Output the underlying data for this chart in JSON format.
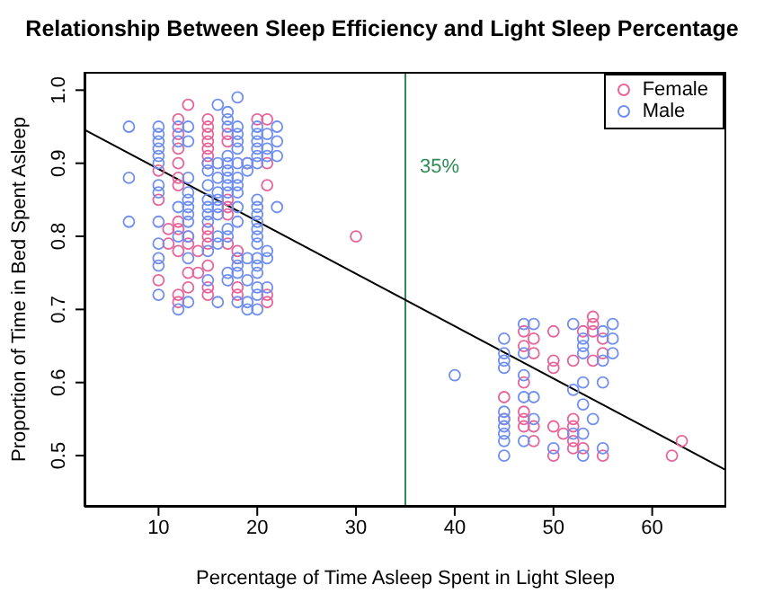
{
  "chart_data": {
    "type": "scatter",
    "title": "Relationship Between Sleep Efficiency and Light Sleep Percentage",
    "xlabel": "Percentage of Time Asleep Spent in Light Sleep",
    "ylabel": "Proportion of Time in Bed Spent Asleep",
    "xlim": [
      2.5,
      67.5
    ],
    "ylim": [
      0.43,
      1.025
    ],
    "xticks": [
      10,
      20,
      30,
      40,
      50,
      60
    ],
    "yticks": [
      0.5,
      0.6,
      0.7,
      0.8,
      0.9,
      {
        "value": 1,
        "label": "1.0"
      }
    ],
    "legend": "top right",
    "marker": "circle",
    "series": [
      {
        "name": "Female",
        "color": "#e7649a",
        "x": [
          10,
          10,
          10,
          11,
          11,
          12,
          12,
          12,
          12,
          12,
          12,
          12,
          12,
          12,
          12,
          12,
          13,
          13,
          13,
          13,
          13,
          14,
          14,
          15,
          15,
          15,
          15,
          15,
          15,
          15,
          15,
          15,
          15,
          15,
          15,
          15,
          17,
          17,
          17,
          17,
          17,
          17,
          18,
          18,
          18,
          18,
          19,
          20,
          21,
          21,
          21,
          21,
          21,
          30,
          45,
          45,
          47,
          47,
          47,
          47,
          47,
          47,
          48,
          48,
          48,
          48,
          50,
          50,
          50,
          50,
          50,
          51,
          52,
          52,
          52,
          52,
          52,
          53,
          53,
          54,
          54,
          54,
          54,
          55,
          55,
          55,
          62,
          63
        ],
        "values": [
          0.89,
          0.85,
          0.74,
          0.81,
          0.79,
          0.96,
          0.94,
          0.92,
          0.9,
          0.88,
          0.87,
          0.82,
          0.81,
          0.78,
          0.72,
          0.71,
          0.98,
          0.8,
          0.79,
          0.75,
          0.73,
          0.78,
          0.75,
          0.96,
          0.95,
          0.94,
          0.93,
          0.92,
          0.91,
          0.9,
          0.81,
          0.8,
          0.79,
          0.76,
          0.73,
          0.72,
          0.94,
          0.93,
          0.85,
          0.84,
          0.83,
          0.79,
          0.78,
          0.77,
          0.73,
          0.72,
          0.9,
          0.96,
          0.96,
          0.9,
          0.87,
          0.72,
          0.71,
          0.8,
          0.58,
          0.55,
          0.67,
          0.65,
          0.6,
          0.56,
          0.55,
          0.54,
          0.66,
          0.64,
          0.54,
          0.52,
          0.67,
          0.63,
          0.62,
          0.54,
          0.5,
          0.53,
          0.63,
          0.55,
          0.54,
          0.52,
          0.51,
          0.67,
          0.51,
          0.69,
          0.68,
          0.67,
          0.63,
          0.66,
          0.64,
          0.5,
          0.5,
          0.52
        ]
      },
      {
        "name": "Male",
        "color": "#6f8ff0",
        "x": [
          7,
          7,
          7,
          10,
          10,
          10,
          10,
          10,
          10,
          10,
          10,
          10,
          10,
          10,
          10,
          10,
          12,
          12,
          12,
          12,
          12,
          13,
          13,
          13,
          13,
          13,
          13,
          13,
          13,
          13,
          13,
          13,
          15,
          15,
          15,
          15,
          15,
          15,
          15,
          15,
          15,
          16,
          16,
          16,
          16,
          16,
          16,
          16,
          16,
          16,
          16,
          17,
          17,
          17,
          17,
          17,
          17,
          17,
          17,
          17,
          17,
          17,
          17,
          17,
          18,
          18,
          18,
          18,
          18,
          18,
          18,
          18,
          18,
          18,
          18,
          18,
          18,
          18,
          18,
          19,
          19,
          19,
          19,
          19,
          19,
          20,
          20,
          20,
          20,
          20,
          20,
          20,
          20,
          20,
          20,
          20,
          20,
          20,
          20,
          20,
          20,
          20,
          20,
          20,
          21,
          21,
          21,
          21,
          21,
          21,
          22,
          22,
          22,
          22,
          40,
          45,
          45,
          45,
          45,
          45,
          45,
          45,
          45,
          45,
          45,
          47,
          47,
          47,
          47,
          47,
          48,
          48,
          48,
          50,
          52,
          52,
          52,
          53,
          53,
          53,
          53,
          53,
          53,
          53,
          54,
          55,
          55,
          55,
          55,
          56,
          56,
          56
        ],
        "values": [
          0.95,
          0.88,
          0.82,
          0.95,
          0.94,
          0.93,
          0.92,
          0.91,
          0.9,
          0.87,
          0.86,
          0.82,
          0.79,
          0.77,
          0.76,
          0.72,
          0.95,
          0.93,
          0.84,
          0.8,
          0.7,
          0.95,
          0.93,
          0.88,
          0.86,
          0.85,
          0.84,
          0.83,
          0.82,
          0.8,
          0.77,
          0.71,
          0.9,
          0.89,
          0.87,
          0.85,
          0.84,
          0.83,
          0.82,
          0.78,
          0.74,
          0.98,
          0.9,
          0.88,
          0.86,
          0.85,
          0.84,
          0.83,
          0.8,
          0.79,
          0.71,
          0.97,
          0.96,
          0.95,
          0.91,
          0.9,
          0.89,
          0.88,
          0.87,
          0.86,
          0.81,
          0.8,
          0.75,
          0.74,
          0.99,
          0.95,
          0.94,
          0.93,
          0.92,
          0.9,
          0.88,
          0.87,
          0.86,
          0.84,
          0.82,
          0.77,
          0.76,
          0.75,
          0.71,
          0.9,
          0.89,
          0.77,
          0.74,
          0.71,
          0.7,
          0.95,
          0.94,
          0.93,
          0.92,
          0.91,
          0.9,
          0.85,
          0.84,
          0.83,
          0.82,
          0.81,
          0.8,
          0.79,
          0.77,
          0.76,
          0.75,
          0.73,
          0.72,
          0.7,
          0.94,
          0.92,
          0.91,
          0.78,
          0.77,
          0.73,
          0.95,
          0.93,
          0.91,
          0.84,
          0.61,
          0.66,
          0.64,
          0.63,
          0.62,
          0.56,
          0.55,
          0.54,
          0.53,
          0.52,
          0.5,
          0.68,
          0.64,
          0.61,
          0.58,
          0.52,
          0.68,
          0.58,
          0.55,
          0.51,
          0.68,
          0.59,
          0.53,
          0.66,
          0.65,
          0.64,
          0.6,
          0.57,
          0.53,
          0.5,
          0.55,
          0.67,
          0.63,
          0.6,
          0.51,
          0.68,
          0.66,
          0.64
        ]
      },
      {
        "type": "line",
        "color": "#000000",
        "x": [
          2.5,
          67.5
        ],
        "values": [
          0.946,
          0.48
        ],
        "marker": "none"
      }
    ],
    "ref_lines": [
      {
        "axis": "x",
        "value": 35,
        "label": "35%",
        "color": "#2e8b57"
      }
    ]
  }
}
